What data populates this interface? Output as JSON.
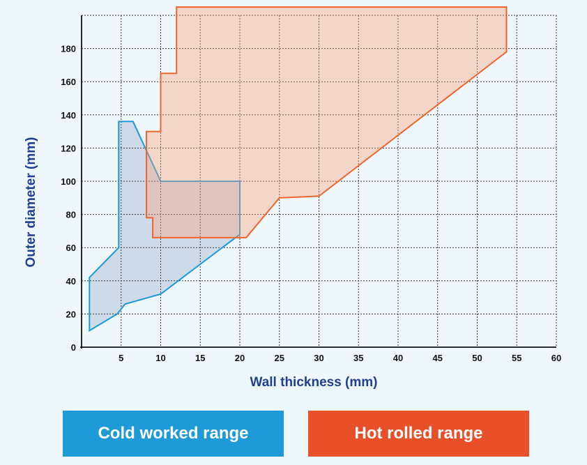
{
  "chart_data": {
    "type": "area",
    "xlabel": "Wall thickness (mm)",
    "ylabel": "Outer diameter (mm)",
    "xlim": [
      0,
      60
    ],
    "ylim": [
      0,
      200
    ],
    "x_ticks": [
      5,
      10,
      15,
      20,
      25,
      30,
      35,
      40,
      45,
      50,
      55,
      60
    ],
    "y_ticks": [
      0,
      20,
      40,
      60,
      80,
      100,
      120,
      140,
      160,
      180
    ],
    "x_grid": [
      5,
      10,
      15,
      20,
      25,
      30,
      35,
      40,
      45,
      50,
      55,
      60
    ],
    "y_grid": [
      20,
      40,
      60,
      80,
      100,
      120,
      140,
      160,
      180,
      200
    ],
    "grid": true,
    "legend_position": "bottom",
    "series": [
      {
        "name": "Cold worked range",
        "color": "#1a9ad6",
        "fill": "rgba(60,90,150,0.18)",
        "points": [
          [
            1,
            10
          ],
          [
            1,
            42
          ],
          [
            4.7,
            60
          ],
          [
            4.7,
            136
          ],
          [
            6.5,
            136
          ],
          [
            10,
            100
          ],
          [
            20,
            100
          ],
          [
            20,
            68
          ],
          [
            10,
            32
          ],
          [
            5.5,
            26
          ],
          [
            4.5,
            20
          ],
          [
            1,
            10
          ]
        ]
      },
      {
        "name": "Hot rolled range",
        "color": "#f0642a",
        "fill": "rgba(250,160,120,0.38)",
        "points": [
          [
            12,
            205
          ],
          [
            53.7,
            205
          ],
          [
            53.7,
            178
          ],
          [
            30,
            91
          ],
          [
            25,
            90
          ],
          [
            20.8,
            66
          ],
          [
            9,
            66
          ],
          [
            9,
            78
          ],
          [
            8.2,
            78
          ],
          [
            8.2,
            130
          ],
          [
            10,
            130
          ],
          [
            10,
            165
          ],
          [
            12,
            165
          ],
          [
            12,
            205
          ]
        ]
      }
    ]
  },
  "legend": {
    "cold_label": "Cold worked range",
    "hot_label": "Hot rolled range",
    "cold_color": "#1f9ad8",
    "hot_color": "#e8502a"
  }
}
